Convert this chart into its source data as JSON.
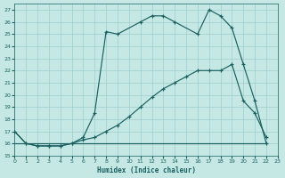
{
  "xlabel": "Humidex (Indice chaleur)",
  "bg_color": "#c5e8e5",
  "grid_color": "#9ecece",
  "line_color": "#1a6060",
  "xlim": [
    0,
    23
  ],
  "ylim": [
    15,
    27.5
  ],
  "xticks": [
    0,
    1,
    2,
    3,
    4,
    5,
    6,
    7,
    8,
    9,
    10,
    11,
    12,
    13,
    14,
    15,
    16,
    17,
    18,
    19,
    20,
    21,
    22,
    23
  ],
  "yticks": [
    15,
    16,
    17,
    18,
    19,
    20,
    21,
    22,
    23,
    24,
    25,
    26,
    27
  ],
  "line_flat": {
    "x": [
      0,
      1,
      2,
      3,
      4,
      5,
      6,
      7,
      8,
      9,
      10,
      11,
      12,
      13,
      14,
      15,
      16,
      17,
      18,
      19,
      20,
      21,
      22
    ],
    "y": [
      16,
      16,
      16,
      16,
      16,
      16,
      16,
      16,
      16,
      16,
      16,
      16,
      16,
      16,
      16,
      16,
      16,
      16,
      16,
      16,
      16,
      16,
      16
    ]
  },
  "line_diag": {
    "x": [
      0,
      1,
      2,
      3,
      4,
      5,
      6,
      7,
      8,
      9,
      10,
      11,
      12,
      13,
      14,
      15,
      16,
      17,
      18,
      19,
      20,
      21,
      22
    ],
    "y": [
      17,
      16,
      15.8,
      15.8,
      15.8,
      16,
      16.3,
      16.5,
      17,
      17.5,
      18.2,
      19,
      19.8,
      20.5,
      21,
      21.5,
      22,
      22,
      22,
      22.5,
      19.5,
      18.5,
      16.5
    ],
    "has_markers": true
  },
  "line_peak": {
    "x": [
      0,
      1,
      2,
      3,
      4,
      5,
      6,
      7,
      8,
      9,
      11,
      12,
      13,
      14,
      16,
      17,
      18,
      19,
      20,
      21,
      22
    ],
    "y": [
      17,
      16,
      15.8,
      15.8,
      15.8,
      16,
      16.5,
      18.5,
      25.2,
      25.0,
      26.0,
      26.5,
      26.5,
      26.0,
      25.0,
      27.0,
      26.5,
      25.5,
      22.5,
      19.5,
      16.0
    ],
    "has_markers": true
  }
}
